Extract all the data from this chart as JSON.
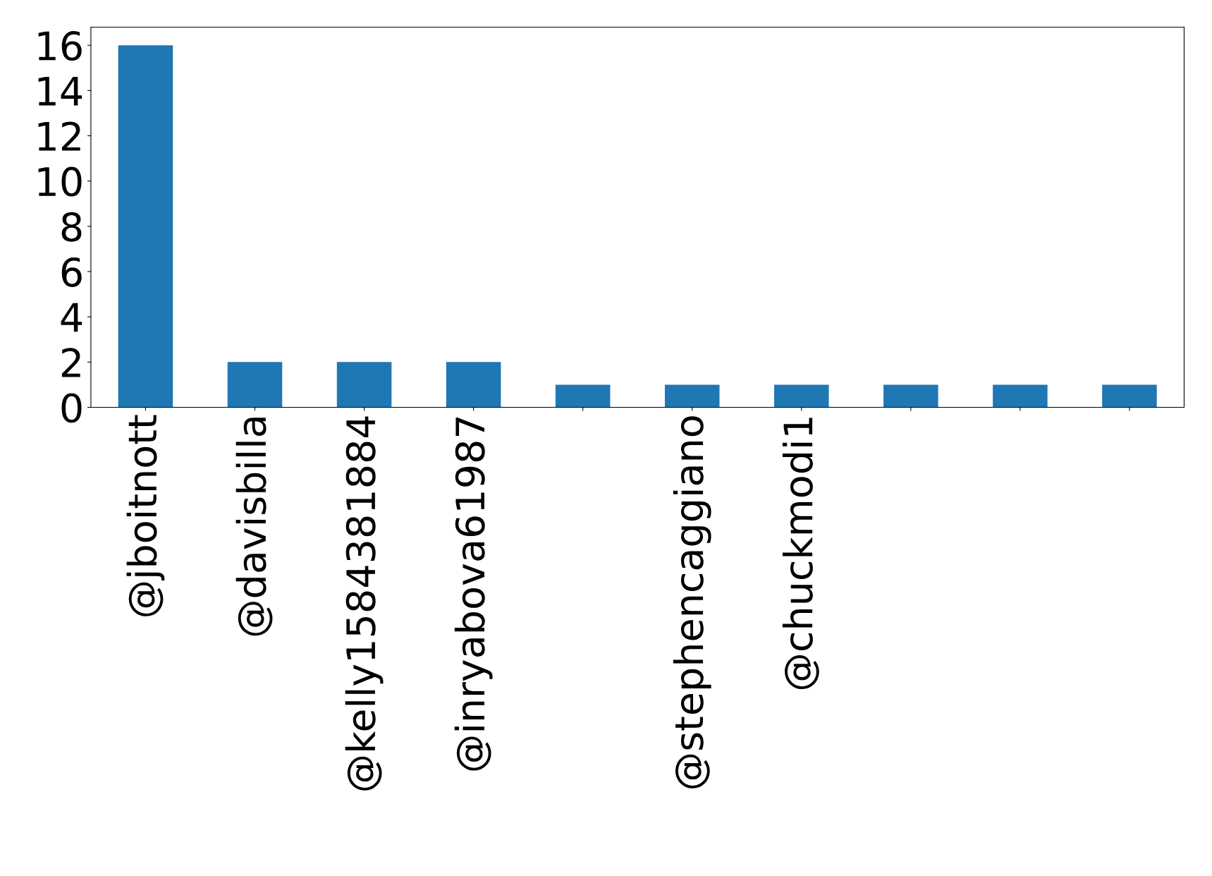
{
  "chart_data": {
    "type": "bar",
    "categories": [
      "@jboitnott",
      "@davisbilla",
      "@kelly1584381884",
      "@inryabova61987",
      null,
      "@stephencaggiano",
      "@chuckmodi1",
      null,
      null,
      null
    ],
    "values": [
      16,
      2,
      2,
      2,
      1,
      1,
      1,
      1,
      1,
      1
    ],
    "color": "#1f77b4",
    "ylim": [
      0,
      16.8
    ],
    "yticks": [
      0,
      2,
      4,
      6,
      8,
      10,
      12,
      14,
      16
    ],
    "grid": false,
    "legend": false
  }
}
